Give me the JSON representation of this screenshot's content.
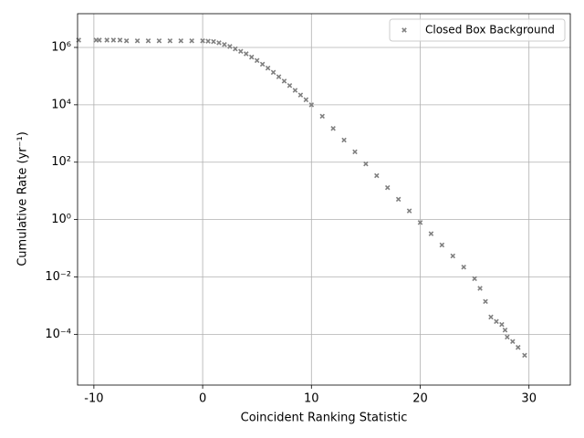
{
  "chart_data": {
    "type": "scatter",
    "x_label": "Coincident Ranking Statistic",
    "y_label": "Cumulative Rate (yr⁻¹)",
    "xlim": [
      -11.5,
      33.8
    ],
    "xticks": [
      -10,
      0,
      10,
      20,
      30
    ],
    "ylim": [
      1.7e-06,
      15000000.0
    ],
    "log_y": true,
    "grid": true,
    "legend": "upper right",
    "yticks": [
      {
        "value": 0.0001,
        "label": "10⁻⁴"
      },
      {
        "value": 0.01,
        "label": "10⁻²"
      },
      {
        "value": 1,
        "label": "10⁰"
      },
      {
        "value": 100,
        "label": "10²"
      },
      {
        "value": 10000,
        "label": "10⁴"
      },
      {
        "value": 1000000,
        "label": "10⁶"
      }
    ],
    "series": [
      {
        "name": "Closed Box Background",
        "color": "#808080",
        "x": [
          -11.4,
          -9.8,
          -9.5,
          -8.8,
          -8.2,
          -7.6,
          -7.0,
          -6.0,
          -5.0,
          -4.0,
          -3.0,
          -2.0,
          -1.0,
          0,
          0.5,
          1,
          1.5,
          2,
          2.5,
          3,
          3.5,
          4,
          4.5,
          5,
          5.5,
          6,
          6.5,
          7,
          7.5,
          8,
          8.5,
          9,
          9.5,
          10,
          11,
          12,
          13,
          14,
          15,
          16,
          17,
          18,
          19,
          20,
          21,
          22,
          23,
          24,
          25,
          25.5,
          26,
          26.5,
          27,
          27.5,
          27.8,
          28,
          28.5,
          29,
          29.6
        ],
        "values": [
          1800000.0,
          1800000.0,
          1800000.0,
          1800000.0,
          1800000.0,
          1800000.0,
          1700000.0,
          1700000.0,
          1700000.0,
          1700000.0,
          1700000.0,
          1700000.0,
          1700000.0,
          1700000.0,
          1650000.0,
          1600000.0,
          1450000.0,
          1260000.0,
          1080000.0,
          890000.0,
          730000.0,
          600000.0,
          460000.0,
          350000.0,
          260000.0,
          190000.0,
          135000.0,
          95000.0,
          67000.0,
          47000.0,
          32000.0,
          22000.0,
          15000.0,
          10000.0,
          4000.0,
          1500.0,
          590,
          230,
          87,
          34,
          13,
          5.1,
          2,
          0.79,
          0.32,
          0.13,
          0.054,
          0.022,
          0.0087,
          0.004,
          0.0014,
          0.0004,
          0.00028,
          0.00022,
          0.00014,
          8e-05,
          5.6e-05,
          3.5e-05,
          1.86e-05
        ]
      }
    ]
  }
}
